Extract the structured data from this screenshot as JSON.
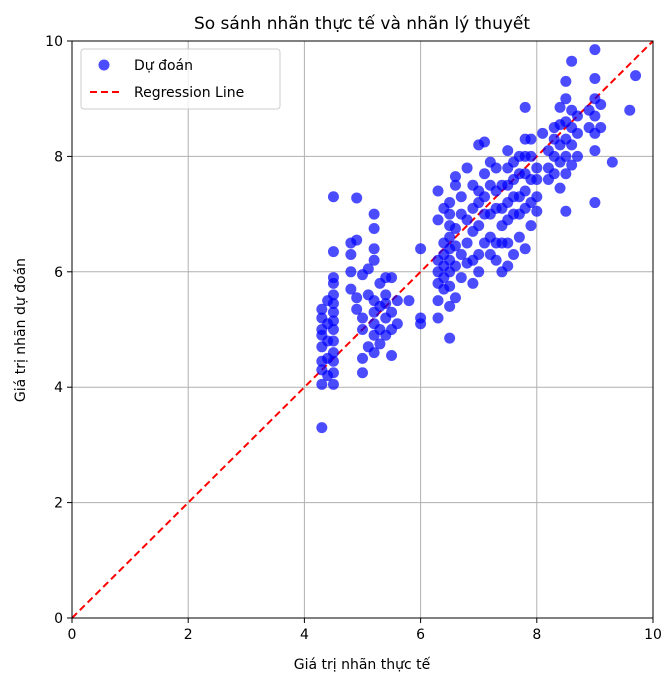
{
  "chart_data": {
    "type": "scatter",
    "title": "So sánh nhãn thực tế và nhãn lý thuyết",
    "xlabel": "Giá trị nhãn thực tế",
    "ylabel": "Giá trị nhãn dự đoán",
    "xlim": [
      0,
      10
    ],
    "ylim": [
      0,
      10
    ],
    "xticks": [
      "0",
      "2",
      "4",
      "6",
      "8",
      "10"
    ],
    "yticks": [
      "0",
      "2",
      "4",
      "6",
      "8",
      "10"
    ],
    "grid": true,
    "legend_position": "top-left",
    "colors": {
      "points": "#0000ff",
      "regression": "#ff0000"
    },
    "series": [
      {
        "name": "Dự đoán",
        "kind": "scatter",
        "points": [
          [
            4.3,
            3.3
          ],
          [
            4.3,
            4.05
          ],
          [
            4.3,
            4.3
          ],
          [
            4.3,
            4.45
          ],
          [
            4.3,
            4.7
          ],
          [
            4.3,
            4.9
          ],
          [
            4.3,
            5.0
          ],
          [
            4.3,
            5.2
          ],
          [
            4.3,
            5.35
          ],
          [
            4.4,
            4.2
          ],
          [
            4.4,
            4.5
          ],
          [
            4.4,
            4.8
          ],
          [
            4.4,
            5.1
          ],
          [
            4.4,
            5.5
          ],
          [
            4.5,
            4.05
          ],
          [
            4.5,
            4.25
          ],
          [
            4.5,
            4.45
          ],
          [
            4.5,
            4.6
          ],
          [
            4.5,
            4.8
          ],
          [
            4.5,
            5.0
          ],
          [
            4.5,
            5.15
          ],
          [
            4.5,
            5.3
          ],
          [
            4.5,
            5.45
          ],
          [
            4.5,
            5.6
          ],
          [
            4.5,
            5.8
          ],
          [
            4.5,
            5.9
          ],
          [
            4.5,
            6.35
          ],
          [
            4.5,
            7.3
          ],
          [
            4.8,
            5.7
          ],
          [
            4.8,
            6.0
          ],
          [
            4.8,
            6.3
          ],
          [
            4.8,
            6.5
          ],
          [
            4.9,
            5.35
          ],
          [
            4.9,
            5.55
          ],
          [
            4.9,
            6.55
          ],
          [
            4.9,
            7.28
          ],
          [
            5.0,
            4.25
          ],
          [
            5.0,
            4.5
          ],
          [
            5.0,
            5.0
          ],
          [
            5.0,
            5.2
          ],
          [
            5.0,
            5.95
          ],
          [
            5.1,
            4.7
          ],
          [
            5.1,
            5.6
          ],
          [
            5.1,
            6.05
          ],
          [
            5.2,
            4.6
          ],
          [
            5.2,
            4.9
          ],
          [
            5.2,
            5.1
          ],
          [
            5.2,
            5.3
          ],
          [
            5.2,
            5.5
          ],
          [
            5.2,
            6.2
          ],
          [
            5.2,
            6.4
          ],
          [
            5.2,
            6.75
          ],
          [
            5.2,
            7.0
          ],
          [
            5.3,
            4.75
          ],
          [
            5.3,
            5.0
          ],
          [
            5.3,
            5.4
          ],
          [
            5.3,
            5.8
          ],
          [
            5.4,
            4.9
          ],
          [
            5.4,
            5.2
          ],
          [
            5.4,
            5.45
          ],
          [
            5.4,
            5.6
          ],
          [
            5.4,
            5.9
          ],
          [
            5.5,
            4.55
          ],
          [
            5.5,
            5.0
          ],
          [
            5.5,
            5.3
          ],
          [
            5.5,
            5.9
          ],
          [
            5.6,
            5.1
          ],
          [
            5.6,
            5.5
          ],
          [
            5.8,
            5.5
          ],
          [
            6.0,
            5.1
          ],
          [
            6.0,
            5.2
          ],
          [
            6.0,
            6.4
          ],
          [
            6.3,
            5.2
          ],
          [
            6.3,
            5.5
          ],
          [
            6.3,
            5.8
          ],
          [
            6.3,
            6.0
          ],
          [
            6.3,
            6.2
          ],
          [
            6.3,
            6.9
          ],
          [
            6.3,
            7.4
          ],
          [
            6.4,
            5.7
          ],
          [
            6.4,
            5.9
          ],
          [
            6.4,
            6.1
          ],
          [
            6.4,
            6.3
          ],
          [
            6.4,
            6.5
          ],
          [
            6.4,
            7.1
          ],
          [
            6.5,
            4.85
          ],
          [
            6.5,
            5.4
          ],
          [
            6.5,
            5.75
          ],
          [
            6.5,
            6.0
          ],
          [
            6.5,
            6.2
          ],
          [
            6.5,
            6.4
          ],
          [
            6.5,
            6.6
          ],
          [
            6.5,
            6.8
          ],
          [
            6.5,
            7.0
          ],
          [
            6.5,
            7.2
          ],
          [
            6.6,
            5.55
          ],
          [
            6.6,
            6.1
          ],
          [
            6.6,
            6.45
          ],
          [
            6.6,
            6.75
          ],
          [
            6.6,
            7.5
          ],
          [
            6.6,
            7.65
          ],
          [
            6.7,
            5.9
          ],
          [
            6.7,
            6.3
          ],
          [
            6.7,
            7.0
          ],
          [
            6.7,
            7.3
          ],
          [
            6.8,
            6.15
          ],
          [
            6.8,
            6.5
          ],
          [
            6.8,
            6.9
          ],
          [
            6.8,
            7.8
          ],
          [
            6.9,
            5.8
          ],
          [
            6.9,
            6.2
          ],
          [
            6.9,
            6.7
          ],
          [
            6.9,
            7.1
          ],
          [
            6.9,
            7.5
          ],
          [
            7.0,
            6.0
          ],
          [
            7.0,
            6.3
          ],
          [
            7.0,
            6.8
          ],
          [
            7.0,
            7.2
          ],
          [
            7.0,
            7.4
          ],
          [
            7.0,
            8.2
          ],
          [
            7.1,
            6.5
          ],
          [
            7.1,
            7.0
          ],
          [
            7.1,
            7.3
          ],
          [
            7.1,
            7.7
          ],
          [
            7.1,
            8.25
          ],
          [
            7.2,
            6.3
          ],
          [
            7.2,
            6.6
          ],
          [
            7.2,
            7.0
          ],
          [
            7.2,
            7.5
          ],
          [
            7.2,
            7.9
          ],
          [
            7.3,
            6.2
          ],
          [
            7.3,
            6.5
          ],
          [
            7.3,
            7.1
          ],
          [
            7.3,
            7.4
          ],
          [
            7.3,
            7.8
          ],
          [
            7.4,
            6.0
          ],
          [
            7.4,
            6.5
          ],
          [
            7.4,
            6.8
          ],
          [
            7.4,
            7.1
          ],
          [
            7.4,
            7.5
          ],
          [
            7.5,
            6.1
          ],
          [
            7.5,
            6.5
          ],
          [
            7.5,
            6.9
          ],
          [
            7.5,
            7.2
          ],
          [
            7.5,
            7.5
          ],
          [
            7.5,
            7.8
          ],
          [
            7.5,
            8.1
          ],
          [
            7.6,
            6.3
          ],
          [
            7.6,
            7.0
          ],
          [
            7.6,
            7.3
          ],
          [
            7.6,
            7.6
          ],
          [
            7.6,
            7.9
          ],
          [
            7.7,
            6.6
          ],
          [
            7.7,
            7.0
          ],
          [
            7.7,
            7.3
          ],
          [
            7.7,
            7.7
          ],
          [
            7.7,
            8.0
          ],
          [
            7.8,
            6.4
          ],
          [
            7.8,
            7.1
          ],
          [
            7.8,
            7.4
          ],
          [
            7.8,
            7.7
          ],
          [
            7.8,
            8.0
          ],
          [
            7.8,
            8.3
          ],
          [
            7.8,
            8.85
          ],
          [
            7.9,
            6.8
          ],
          [
            7.9,
            7.2
          ],
          [
            7.9,
            7.6
          ],
          [
            7.9,
            8.0
          ],
          [
            7.9,
            8.3
          ],
          [
            8.0,
            7.05
          ],
          [
            8.0,
            7.3
          ],
          [
            8.0,
            7.6
          ],
          [
            8.0,
            7.8
          ],
          [
            8.1,
            8.4
          ],
          [
            8.2,
            7.6
          ],
          [
            8.2,
            7.8
          ],
          [
            8.2,
            8.1
          ],
          [
            8.3,
            7.7
          ],
          [
            8.3,
            8.0
          ],
          [
            8.3,
            8.3
          ],
          [
            8.3,
            8.5
          ],
          [
            8.4,
            7.45
          ],
          [
            8.4,
            7.9
          ],
          [
            8.4,
            8.2
          ],
          [
            8.4,
            8.55
          ],
          [
            8.4,
            8.85
          ],
          [
            8.5,
            7.05
          ],
          [
            8.5,
            7.7
          ],
          [
            8.5,
            8.0
          ],
          [
            8.5,
            8.3
          ],
          [
            8.5,
            8.6
          ],
          [
            8.5,
            9.0
          ],
          [
            8.5,
            9.3
          ],
          [
            8.6,
            7.85
          ],
          [
            8.6,
            8.2
          ],
          [
            8.6,
            8.5
          ],
          [
            8.6,
            8.8
          ],
          [
            8.6,
            9.65
          ],
          [
            8.7,
            8.0
          ],
          [
            8.7,
            8.4
          ],
          [
            8.7,
            8.7
          ],
          [
            8.9,
            8.5
          ],
          [
            8.9,
            8.8
          ],
          [
            9.0,
            7.2
          ],
          [
            9.0,
            8.1
          ],
          [
            9.0,
            8.4
          ],
          [
            9.0,
            8.7
          ],
          [
            9.0,
            9.0
          ],
          [
            9.0,
            9.35
          ],
          [
            9.0,
            9.85
          ],
          [
            9.1,
            8.5
          ],
          [
            9.1,
            8.9
          ],
          [
            9.3,
            7.9
          ],
          [
            9.6,
            8.8
          ],
          [
            9.7,
            9.4
          ]
        ]
      },
      {
        "name": "Regression Line",
        "kind": "line",
        "style": "dashed",
        "points": [
          [
            0,
            0
          ],
          [
            10,
            10
          ]
        ]
      }
    ]
  }
}
